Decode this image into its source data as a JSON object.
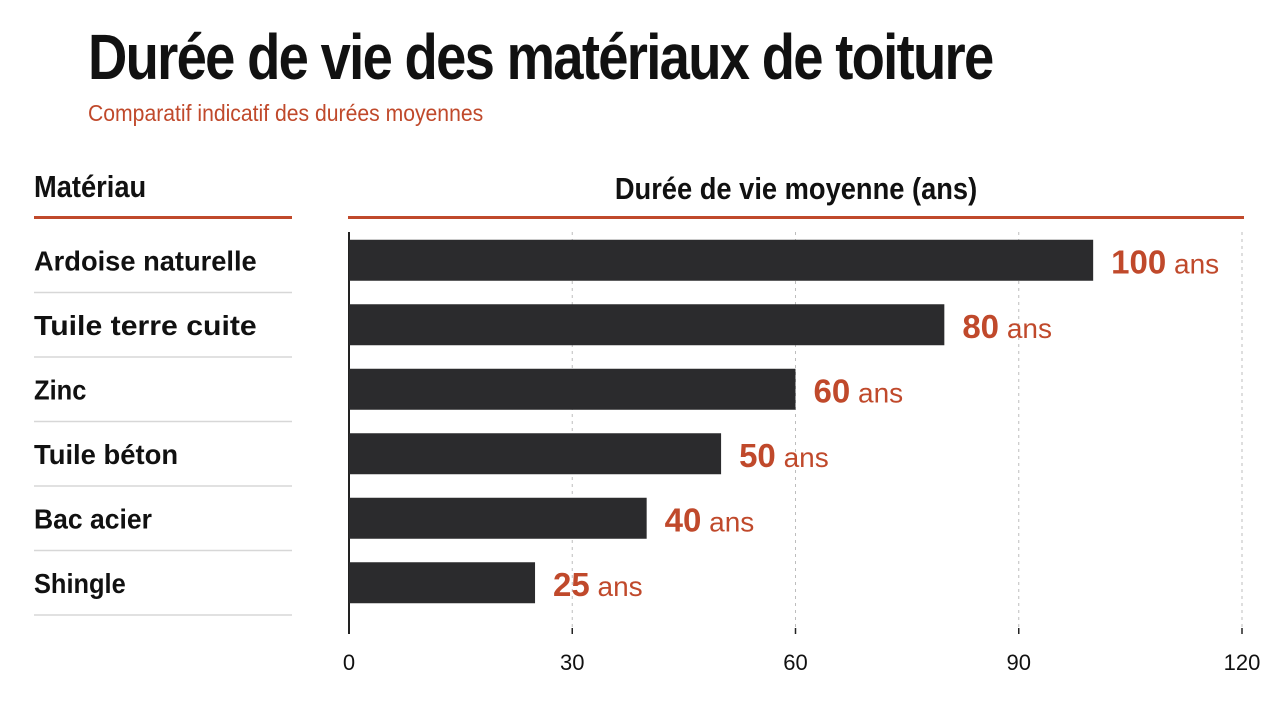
{
  "chart_data": {
    "type": "bar",
    "orientation": "horizontal",
    "title": "Durée de vie des matériaux de toiture",
    "subtitle": "Comparatif indicatif des durées moyennes",
    "category_header": "Matériau",
    "xlabel": "Durée de vie moyenne (ans)",
    "categories": [
      "Ardoise naturelle",
      "Tuile terre cuite",
      "Zinc",
      "Tuile béton",
      "Bac acier",
      "Shingle"
    ],
    "values": [
      100,
      80,
      60,
      50,
      40,
      25
    ],
    "value_unit": "ans",
    "xlim": [
      0,
      120
    ],
    "xticks": [
      0,
      30,
      60,
      90,
      120
    ],
    "grid": true,
    "colors": {
      "bar": "#2b2b2d",
      "accent": "#c0492b",
      "text": "#111111",
      "grid": "#bdbdbd",
      "separator": "#d7d7d7"
    }
  }
}
